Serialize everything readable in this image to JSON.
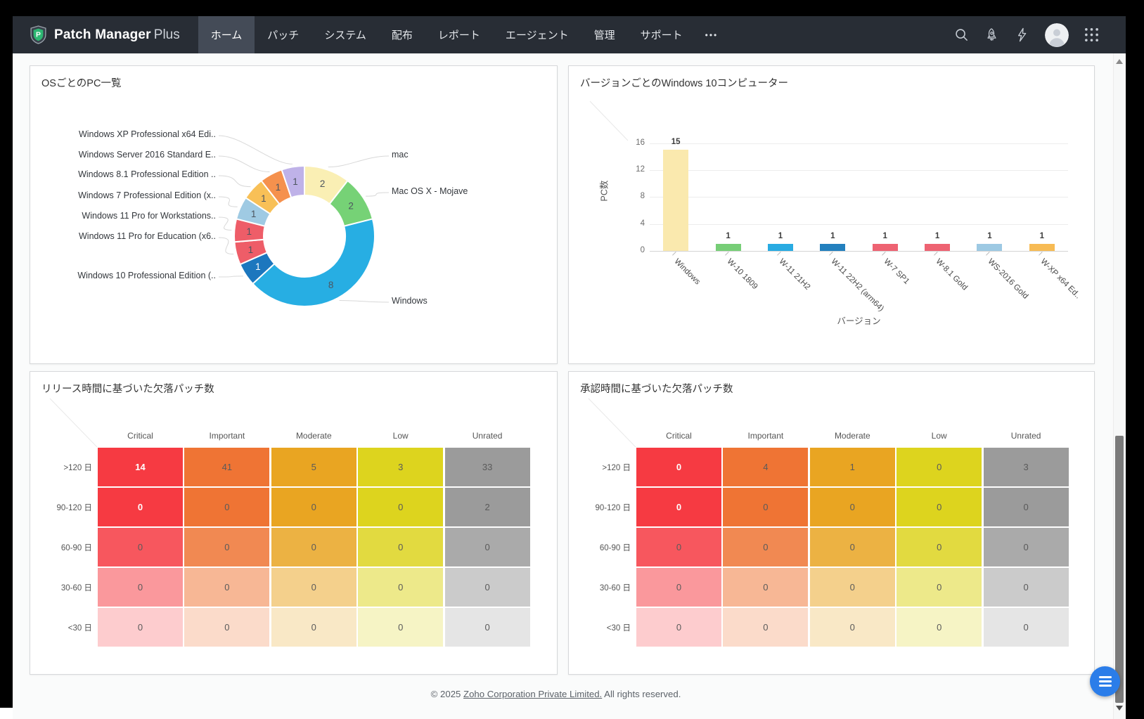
{
  "app": {
    "brand_bold": "Patch Manager",
    "brand_plus": "Plus"
  },
  "navbar": {
    "items": [
      {
        "label": "ホーム",
        "active": true
      },
      {
        "label": "パッチ",
        "active": false
      },
      {
        "label": "システム",
        "active": false
      },
      {
        "label": "配布",
        "active": false
      },
      {
        "label": "レポート",
        "active": false
      },
      {
        "label": "エージェント",
        "active": false
      },
      {
        "label": "管理",
        "active": false
      },
      {
        "label": "サポート",
        "active": false
      },
      {
        "label": "•••",
        "active": false,
        "ellipsis": true
      }
    ],
    "icons": [
      "search-icon",
      "rocket-icon",
      "lightning-icon",
      "avatar",
      "apps-grid-icon"
    ]
  },
  "colors": {
    "navbar_bg": "#282d35",
    "navbar_active_bg": "#444b57",
    "logo_shield_green": "#2eb873",
    "fab_blue": "#2b7de9"
  },
  "chart_data": [
    {
      "type": "pie",
      "title": "OSごとのPC一覧",
      "slices": [
        {
          "label": "mac",
          "value": 2,
          "color": "#faefb4",
          "side": "right"
        },
        {
          "label": "Mac OS X - Mojave",
          "value": 2,
          "color": "#76d276",
          "side": "right"
        },
        {
          "label": "Windows",
          "value": 8,
          "color": "#27aee3",
          "side": "right"
        },
        {
          "label": "Windows 10 Professional Edition (..",
          "value": 1,
          "color": "#1c77be",
          "side": "left"
        },
        {
          "label": "Windows 11 Pro for Education (x6..",
          "value": 1,
          "color": "#ee5d68",
          "side": "left"
        },
        {
          "label": "Windows 11 Pro for Workstations..",
          "value": 1,
          "color": "#ee5d68",
          "side": "left"
        },
        {
          "label": "Windows 7 Professional Edition (x..",
          "value": 1,
          "color": "#9fcae3",
          "side": "left"
        },
        {
          "label": "Windows 8.1 Professional Edition ..",
          "value": 1,
          "color": "#f8c057",
          "side": "left"
        },
        {
          "label": "Windows Server 2016 Standard E..",
          "value": 1,
          "color": "#f5914d",
          "side": "left"
        },
        {
          "label": "Windows XP Professional x64 Edi..",
          "value": 1,
          "color": "#bfb2e8",
          "side": "left"
        }
      ]
    },
    {
      "type": "bar",
      "title": "バージョンごとのWindows 10コンピューター",
      "xlabel": "バージョン",
      "ylabel": "PC数",
      "ylim": [
        0,
        16
      ],
      "yticks": [
        0,
        4,
        8,
        12,
        16
      ],
      "categories": [
        "Windows",
        "W-10 1809",
        "W-11 21H2",
        "W-11 22H2 (arm64)",
        "W-7 SP1",
        "W-8.1 Gold",
        "WS-2016 Gold",
        "W-XP x64 Ed.."
      ],
      "values": [
        15,
        1,
        1,
        1,
        1,
        1,
        1,
        1
      ],
      "colors": [
        "#fae9ae",
        "#77ce77",
        "#29abe2",
        "#2380be",
        "#ee6372",
        "#ee6372",
        "#9dc9e3",
        "#f7bb54"
      ]
    },
    {
      "type": "heatmap",
      "title": "リリース時間に基づいた欠落パッチ数",
      "columns": [
        "Critical",
        "Important",
        "Moderate",
        "Low",
        "Unrated"
      ],
      "rows": [
        ">120 日",
        "90-120 日",
        "60-90 日",
        "30-60 日",
        "<30 日"
      ],
      "values": [
        [
          14,
          41,
          5,
          3,
          33
        ],
        [
          0,
          0,
          0,
          0,
          2
        ],
        [
          0,
          0,
          0,
          0,
          0
        ],
        [
          0,
          0,
          0,
          0,
          0
        ],
        [
          0,
          0,
          0,
          0,
          0
        ]
      ],
      "column_colors": [
        "#f63a42",
        "#ef7434",
        "#e9a522",
        "#ddd41e",
        "#9b9b9b"
      ],
      "row_opacity": [
        1,
        1,
        0.85,
        0.52,
        0.26
      ]
    },
    {
      "type": "heatmap",
      "title": "承認時間に基づいた欠落パッチ数",
      "columns": [
        "Critical",
        "Important",
        "Moderate",
        "Low",
        "Unrated"
      ],
      "rows": [
        ">120 日",
        "90-120 日",
        "60-90 日",
        "30-60 日",
        "<30 日"
      ],
      "values": [
        [
          0,
          4,
          1,
          0,
          3
        ],
        [
          0,
          0,
          0,
          0,
          0
        ],
        [
          0,
          0,
          0,
          0,
          0
        ],
        [
          0,
          0,
          0,
          0,
          0
        ],
        [
          0,
          0,
          0,
          0,
          0
        ]
      ],
      "column_colors": [
        "#f63a42",
        "#ef7434",
        "#e9a522",
        "#ddd41e",
        "#9b9b9b"
      ],
      "row_opacity": [
        1,
        1,
        0.85,
        0.52,
        0.26
      ]
    }
  ],
  "footer": {
    "prefix": "© 2025 ",
    "link_text": "Zoho Corporation Private Limited.",
    "suffix": " All rights reserved."
  },
  "floating_button": {
    "icon": "menu-icon"
  }
}
